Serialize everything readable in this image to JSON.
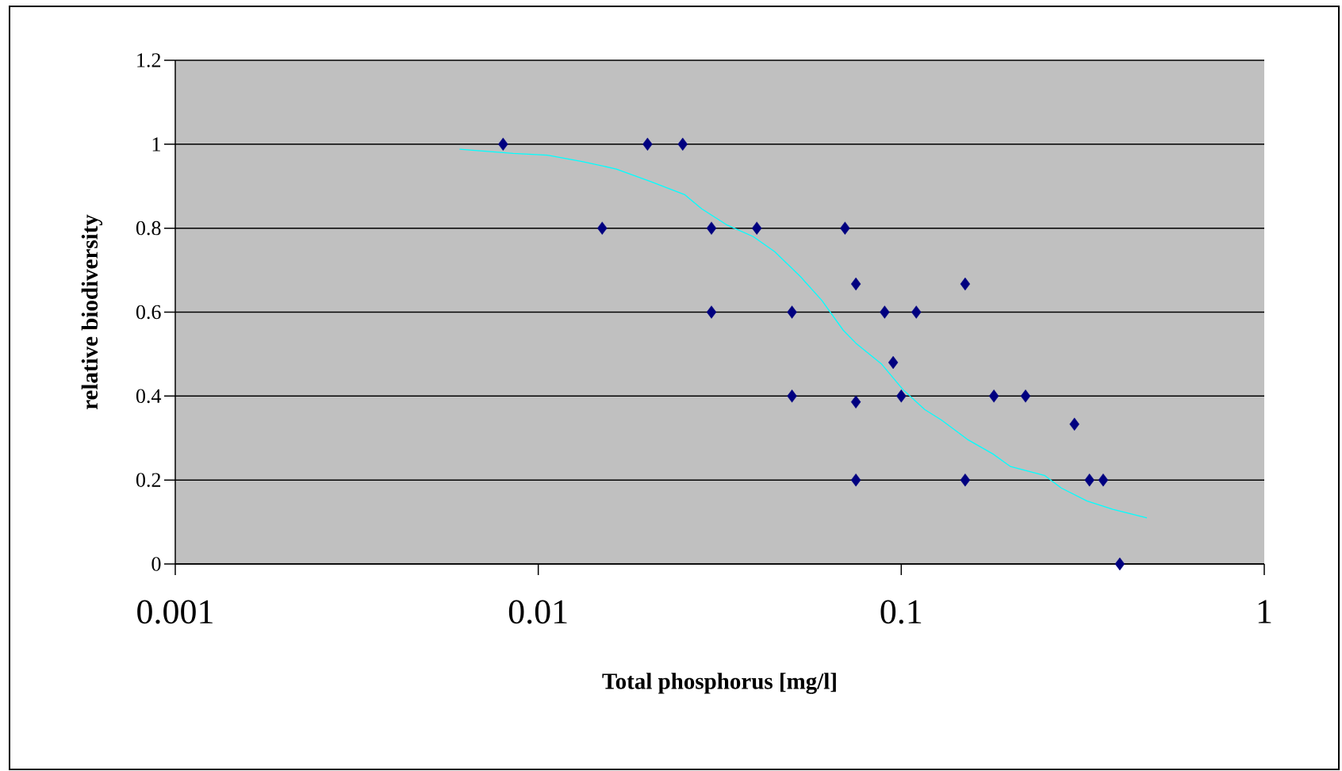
{
  "chart_data": {
    "type": "scatter",
    "xlabel": "Total phosphorus [mg/l]",
    "ylabel": "relative biodiversity",
    "log": "x",
    "xlim": [
      0.001,
      1
    ],
    "xticks": [
      0.001,
      0.01,
      0.1,
      1
    ],
    "ylim": [
      0,
      1.2
    ],
    "yticks": [
      0,
      0.2,
      0.4,
      0.6,
      0.8,
      1,
      1.2
    ],
    "grid": "y",
    "series": [
      {
        "marker": "diamond",
        "color": "#000080",
        "x": [
          0.008,
          0.015,
          0.02,
          0.025,
          0.03,
          0.03,
          0.04,
          0.05,
          0.05,
          0.07,
          0.075,
          0.075,
          0.075,
          0.09,
          0.095,
          0.1,
          0.11,
          0.15,
          0.15,
          0.18,
          0.22,
          0.3,
          0.33,
          0.36,
          0.4
        ],
        "values": [
          1,
          0.8,
          1,
          1,
          0.8,
          0.6,
          0.8,
          0.6,
          0.4,
          0.8,
          0.667,
          0.386,
          0.2,
          0.6,
          0.48,
          0.4,
          0.6,
          0.667,
          0.2,
          0.4,
          0.4,
          0.333,
          0.2,
          0.2,
          0
        ]
      },
      {
        "type": "line",
        "marker": "none",
        "line_style": "solid",
        "color": "#00ffff",
        "x": [
          0.00607,
          0.00853,
          0.0106,
          0.0132,
          0.0164,
          0.0204,
          0.0253,
          0.0282,
          0.0332,
          0.0391,
          0.0448,
          0.0527,
          0.0604,
          0.0692,
          0.075,
          0.0883,
          0.1012,
          0.116,
          0.129,
          0.152,
          0.179,
          0.2,
          0.248,
          0.276,
          0.325,
          0.383,
          0.475
        ],
        "values": [
          0.988,
          0.978,
          0.974,
          0.959,
          0.941,
          0.911,
          0.88,
          0.846,
          0.807,
          0.78,
          0.744,
          0.685,
          0.628,
          0.557,
          0.526,
          0.476,
          0.415,
          0.368,
          0.343,
          0.297,
          0.262,
          0.232,
          0.211,
          0.181,
          0.15,
          0.13,
          0.11
        ]
      }
    ]
  }
}
